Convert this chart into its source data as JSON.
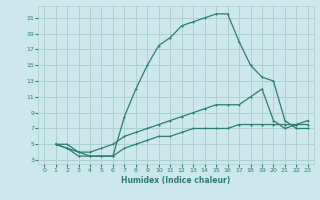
{
  "xlabel": "Humidex (Indice chaleur)",
  "background_color": "#cce8ec",
  "grid_color": "#aacccc",
  "line_color": "#2a7d6f",
  "xlim": [
    -0.5,
    23.5
  ],
  "ylim": [
    2.5,
    22.5
  ],
  "xticks": [
    0,
    1,
    2,
    3,
    4,
    5,
    6,
    7,
    8,
    9,
    10,
    11,
    12,
    13,
    14,
    15,
    16,
    17,
    18,
    19,
    20,
    21,
    22,
    23
  ],
  "yticks": [
    3,
    5,
    7,
    9,
    11,
    13,
    15,
    17,
    19,
    21
  ],
  "line1_x": [
    1,
    2,
    3,
    4,
    5,
    6,
    7,
    8,
    9,
    10,
    11,
    12,
    13,
    14,
    15,
    16,
    17,
    18,
    19,
    20,
    21,
    22,
    23
  ],
  "line1_y": [
    5,
    4.5,
    4,
    3.5,
    3.5,
    3.5,
    8.5,
    12,
    15,
    17.5,
    18.5,
    20,
    20.5,
    21,
    21.5,
    21.5,
    18,
    15,
    13.5,
    13,
    8,
    7,
    7
  ],
  "line2_x": [
    1,
    2,
    3,
    4,
    5,
    6,
    7,
    8,
    9,
    10,
    11,
    12,
    13,
    14,
    15,
    16,
    17,
    18,
    19,
    20,
    21,
    22,
    23
  ],
  "line2_y": [
    5,
    5,
    4,
    4,
    4.5,
    5,
    6,
    6.5,
    7,
    7.5,
    8,
    8.5,
    9,
    9.5,
    10,
    10,
    10,
    11,
    12,
    8,
    7,
    7.5,
    8
  ],
  "line3_x": [
    1,
    2,
    3,
    4,
    5,
    6,
    7,
    8,
    9,
    10,
    11,
    12,
    13,
    14,
    15,
    16,
    17,
    18,
    19,
    20,
    21,
    22,
    23
  ],
  "line3_y": [
    5,
    4.5,
    3.5,
    3.5,
    3.5,
    3.5,
    4.5,
    5,
    5.5,
    6,
    6,
    6.5,
    7,
    7,
    7,
    7,
    7.5,
    7.5,
    7.5,
    7.5,
    7.5,
    7.5,
    7.5
  ]
}
